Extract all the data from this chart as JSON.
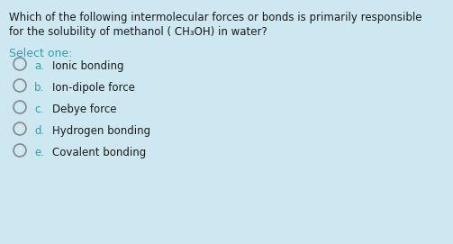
{
  "background_color": "#cde8f0",
  "question_line1": "Which of the following intermolecular forces or bonds is primarily responsible",
  "question_line2": "for the solubility of methanol ( CH₃OH) in water?",
  "select_one_text": "Select one:",
  "select_one_color": "#3a9aaa",
  "options": [
    {
      "label": "a.",
      "text": "Ionic bonding"
    },
    {
      "label": "b.",
      "text": "Ion-dipole force"
    },
    {
      "label": "c.",
      "text": "Debye force"
    },
    {
      "label": "d.",
      "text": "Hydrogen bonding"
    },
    {
      "label": "e.",
      "text": "Covalent bonding"
    }
  ],
  "question_color": "#1a1a1a",
  "option_label_color": "#3a9aaa",
  "option_text_color": "#1a1a1a",
  "circle_edge_color": "#888888",
  "font_size_question": 8.5,
  "font_size_select": 9.0,
  "font_size_options": 8.5
}
